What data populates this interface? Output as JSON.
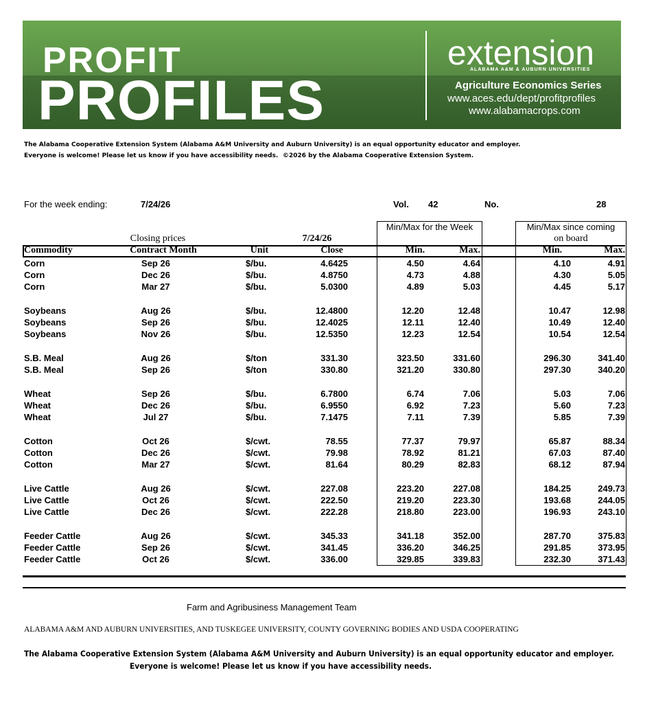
{
  "header": {
    "profit": "PROFIT",
    "profiles": "PROFILES",
    "extension": "extension",
    "extension_sub": "ALABAMA A&M & AUBURN UNIVERSITIES",
    "series": "Agriculture Economics Series",
    "url1": "www.aces.edu/dept/profitprofiles",
    "url2": "www.alabamacrops.com"
  },
  "notice": {
    "line1": "The Alabama Cooperative Extension System (Alabama A&M University and Auburn University) is an equal opportunity educator and employer.",
    "line2": "Everyone is welcome! Please let us know if you have accessibility needs.",
    "copyright": "©2026 by the Alabama Cooperative Extension System."
  },
  "week": {
    "label": "For the week ending:",
    "date": "7/24/26",
    "vol_label": "Vol.",
    "vol": "42",
    "no_label": "No.",
    "no": "28"
  },
  "table": {
    "closing_prices": "Closing prices",
    "date_header": "7/24/26",
    "week_group": "Min/Max for the Week",
    "board_group_1": "Min/Max since coming",
    "board_group_2": "on board",
    "columns": [
      "Commodity",
      "Contract Month",
      "Unit",
      "Close",
      "Min.",
      "Max.",
      "Min.",
      "Max."
    ],
    "groups": [
      {
        "rows": [
          [
            "Corn",
            "Sep 26",
            "$/bu.",
            "4.6425",
            "4.50",
            "4.64",
            "4.10",
            "4.91"
          ],
          [
            "Corn",
            "Dec 26",
            "$/bu.",
            "4.8750",
            "4.73",
            "4.88",
            "4.30",
            "5.05"
          ],
          [
            "Corn",
            "Mar 27",
            "$/bu.",
            "5.0300",
            "4.89",
            "5.03",
            "4.45",
            "5.17"
          ]
        ]
      },
      {
        "rows": [
          [
            "Soybeans",
            "Aug 26",
            "$/bu.",
            "12.4800",
            "12.20",
            "12.48",
            "10.47",
            "12.98"
          ],
          [
            "Soybeans",
            "Sep 26",
            "$/bu.",
            "12.4025",
            "12.11",
            "12.40",
            "10.49",
            "12.40"
          ],
          [
            "Soybeans",
            "Nov 26",
            "$/bu.",
            "12.5350",
            "12.23",
            "12.54",
            "10.54",
            "12.54"
          ]
        ]
      },
      {
        "rows": [
          [
            "S.B. Meal",
            "Aug 26",
            "$/ton",
            "331.30",
            "323.50",
            "331.60",
            "296.30",
            "341.40"
          ],
          [
            "S.B. Meal",
            "Sep 26",
            "$/ton",
            "330.80",
            "321.20",
            "330.80",
            "297.30",
            "340.20"
          ]
        ]
      },
      {
        "rows": [
          [
            "Wheat",
            "Sep 26",
            "$/bu.",
            "6.7800",
            "6.74",
            "7.06",
            "5.03",
            "7.06"
          ],
          [
            "Wheat",
            "Dec 26",
            "$/bu.",
            "6.9550",
            "6.92",
            "7.23",
            "5.60",
            "7.23"
          ],
          [
            "Wheat",
            "Jul 27",
            "$/bu.",
            "7.1475",
            "7.11",
            "7.39",
            "5.85",
            "7.39"
          ]
        ]
      },
      {
        "rows": [
          [
            "Cotton",
            "Oct 26",
            "$/cwt.",
            "78.55",
            "77.37",
            "79.97",
            "65.87",
            "88.34"
          ],
          [
            "Cotton",
            "Dec 26",
            "$/cwt.",
            "79.98",
            "78.92",
            "81.21",
            "67.03",
            "87.40"
          ],
          [
            "Cotton",
            "Mar 27",
            "$/cwt.",
            "81.64",
            "80.29",
            "82.83",
            "68.12",
            "87.94"
          ]
        ]
      },
      {
        "rows": [
          [
            "Live Cattle",
            "Aug 26",
            "$/cwt.",
            "227.08",
            "223.20",
            "227.08",
            "184.25",
            "249.73"
          ],
          [
            "Live Cattle",
            "Oct 26",
            "$/cwt.",
            "222.50",
            "219.20",
            "223.30",
            "193.68",
            "244.05"
          ],
          [
            "Live Cattle",
            "Dec 26",
            "$/cwt.",
            "222.28",
            "218.80",
            "223.00",
            "196.93",
            "243.10"
          ]
        ]
      },
      {
        "rows": [
          [
            "Feeder Cattle",
            "Aug 26",
            "$/cwt.",
            "345.33",
            "341.18",
            "352.00",
            "287.70",
            "375.83"
          ],
          [
            "Feeder Cattle",
            "Sep 26",
            "$/cwt.",
            "341.45",
            "336.20",
            "346.25",
            "291.85",
            "373.95"
          ],
          [
            "Feeder Cattle",
            "Oct 26",
            "$/cwt.",
            "336.00",
            "329.85",
            "339.83",
            "232.30",
            "371.43"
          ]
        ]
      }
    ]
  },
  "footer": {
    "team": "Farm and Agribusiness Management Team",
    "cooperating": "ALABAMA A&M AND AUBURN UNIVERSITIES, AND TUSKEGEE UNIVERSITY, COUNTY GOVERNING BODIES AND USDA COOPERATING",
    "eoe1": "The Alabama Cooperative Extension System (Alabama A&M University and Auburn University) is an equal opportunity educator and employer.",
    "eoe2": "Everyone is welcome! Please let us know if you have accessibility needs."
  }
}
